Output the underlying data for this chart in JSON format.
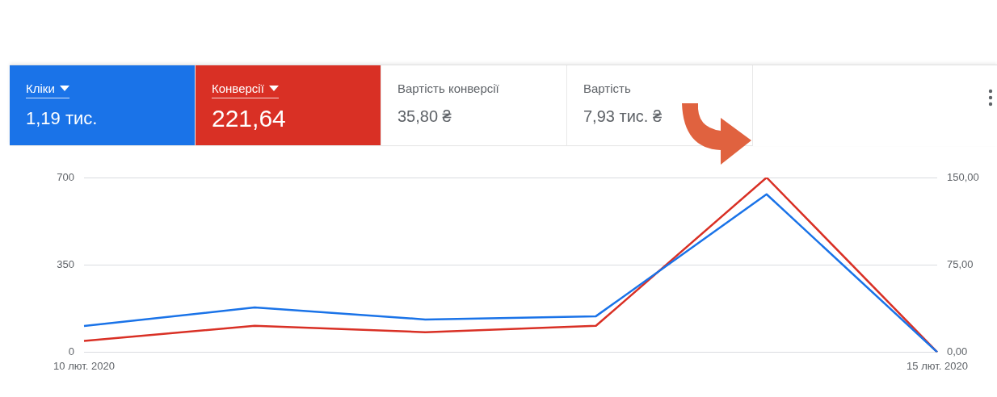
{
  "chart_data": {
    "type": "line",
    "categories": [
      "10 лют. 2020",
      null,
      null,
      null,
      null,
      "15 лют. 2020"
    ],
    "series": [
      {
        "name": "Кліки",
        "color": "#1a73e8",
        "values": [
          105,
          179,
          131,
          144,
          633,
          0
        ]
      },
      {
        "name": "Конверсії",
        "color": "#d93025",
        "values": [
          9.6,
          22.6,
          17.1,
          22.6,
          150,
          0
        ],
        "axis": "y2"
      }
    ],
    "ylim": [
      0,
      700
    ],
    "yticks": [
      0,
      350,
      700
    ],
    "y2lim": [
      0,
      150
    ],
    "y2ticks": [
      {
        "value": 0,
        "label": "0,00"
      },
      {
        "value": 75,
        "label": "75,00"
      },
      {
        "value": 150,
        "label": "150,00"
      }
    ],
    "grid": "y",
    "legend": "top left",
    "annotations": [
      "1,19 тис.",
      "221,64",
      "Вартість конверсії",
      "35,80 ₴",
      "Вартість",
      "7,93 тис. ₴"
    ]
  }
}
